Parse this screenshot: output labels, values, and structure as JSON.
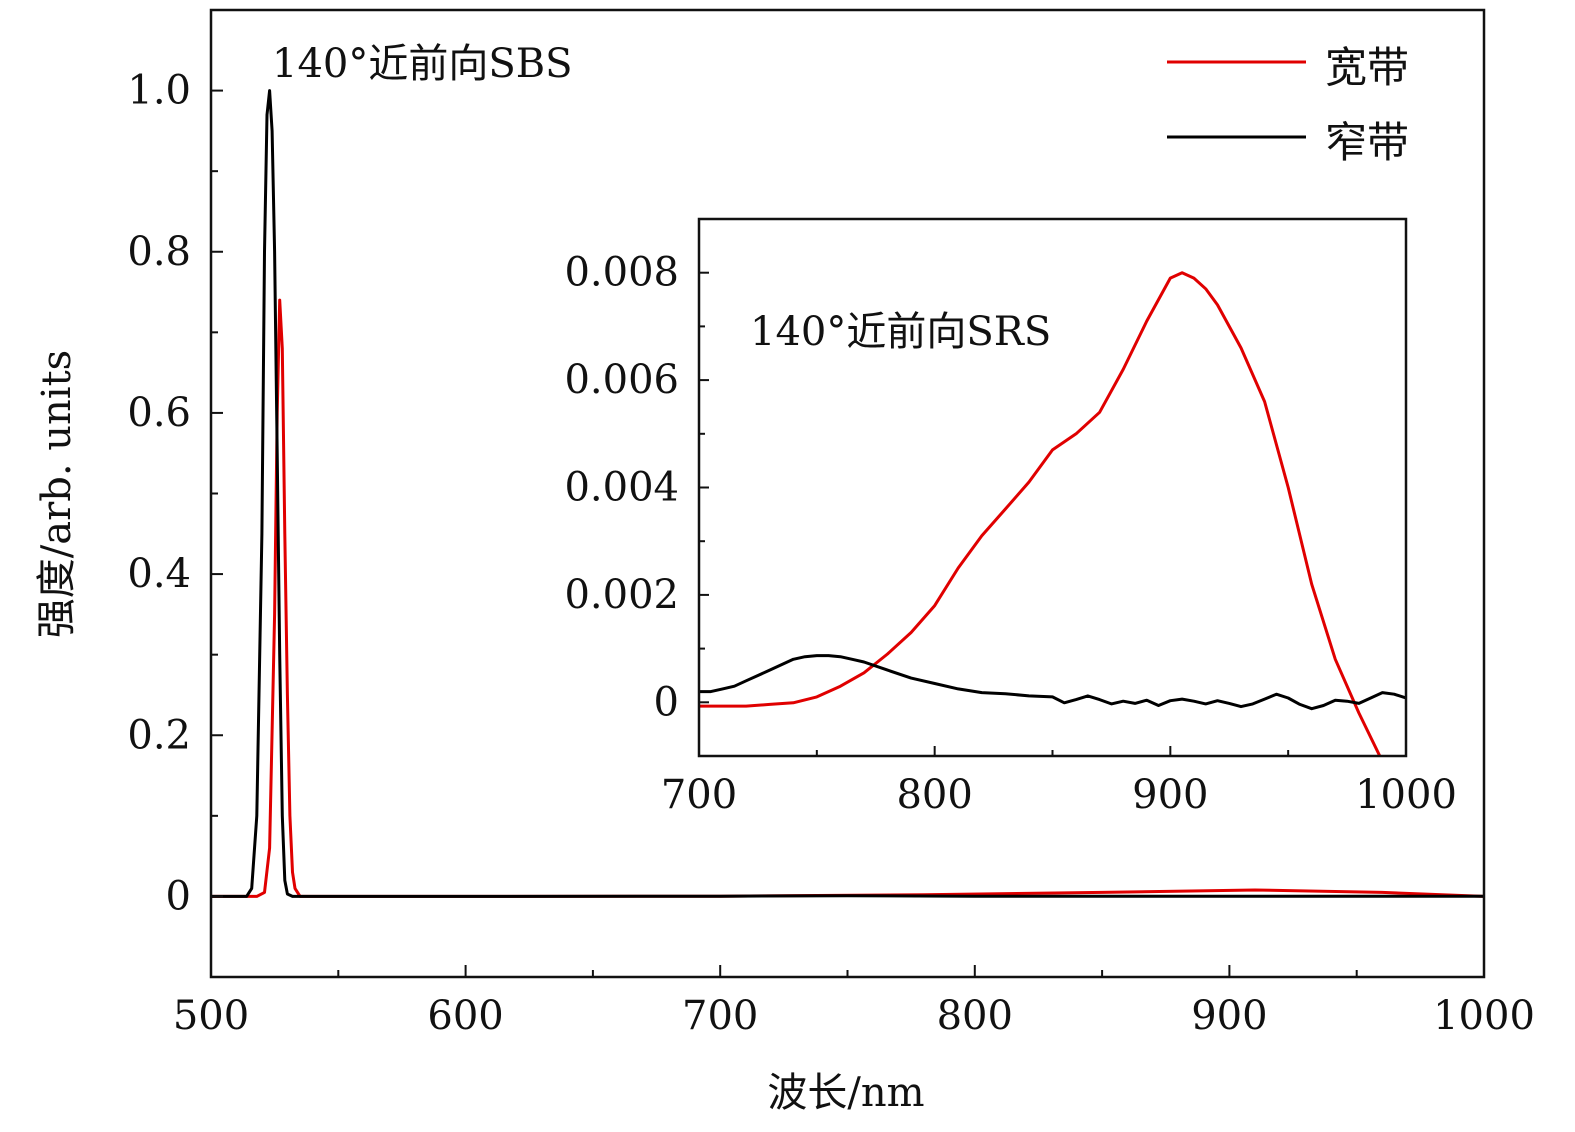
{
  "chart_data": [
    {
      "id": "main",
      "type": "line",
      "title": "",
      "xlabel": "波长/nm",
      "ylabel": "强度/arb. units",
      "xlim": [
        500,
        1000
      ],
      "ylim": [
        -0.1,
        1.1
      ],
      "xticks": [
        500,
        600,
        700,
        800,
        900,
        1000
      ],
      "yticks": [
        0,
        0.2,
        0.4,
        0.6,
        0.8,
        1.0
      ],
      "xtick_labels": [
        "500",
        "600",
        "700",
        "800",
        "900",
        "1000"
      ],
      "ytick_labels": [
        "0",
        "0.2",
        "0.4",
        "0.6",
        "0.8",
        "1.0"
      ],
      "annotation": "140°近前向SBS",
      "legend": {
        "position": "top-right",
        "entries": [
          {
            "label": "宽带",
            "color": "#e00000"
          },
          {
            "label": "窄带",
            "color": "#000000"
          }
        ]
      },
      "series": [
        {
          "name": "宽带",
          "color": "#e00000",
          "x": [
            500,
            518,
            521,
            523,
            525,
            526,
            527,
            528,
            529,
            530,
            531,
            532,
            533,
            535,
            540,
            600,
            700,
            780,
            850,
            910,
            960,
            1000
          ],
          "y": [
            0,
            0,
            0.005,
            0.06,
            0.35,
            0.6,
            0.74,
            0.68,
            0.45,
            0.25,
            0.1,
            0.03,
            0.01,
            0,
            0,
            0,
            0.0003,
            0.002,
            0.005,
            0.008,
            0.005,
            0
          ]
        },
        {
          "name": "窄带",
          "color": "#000000",
          "x": [
            500,
            514,
            516,
            518,
            520,
            521,
            522,
            523,
            524,
            525,
            526,
            527,
            528,
            529,
            530,
            532,
            540,
            600,
            700,
            750,
            800,
            900,
            1000
          ],
          "y": [
            0,
            0,
            0.01,
            0.1,
            0.45,
            0.8,
            0.97,
            1.0,
            0.95,
            0.8,
            0.55,
            0.3,
            0.1,
            0.02,
            0.003,
            0,
            0,
            0,
            0.0003,
            0.0009,
            0.0003,
            0.0001,
            0.0002
          ]
        }
      ]
    },
    {
      "id": "inset",
      "type": "line",
      "title": "",
      "xlabel": "",
      "ylabel": "",
      "xlim": [
        700,
        1000
      ],
      "ylim": [
        -0.001,
        0.009
      ],
      "xticks": [
        700,
        800,
        900,
        1000
      ],
      "yticks": [
        0,
        0.002,
        0.004,
        0.006,
        0.008
      ],
      "xtick_labels": [
        "700",
        "800",
        "900",
        "1000"
      ],
      "ytick_labels": [
        "0",
        "0.002",
        "0.004",
        "0.006",
        "0.008"
      ],
      "annotation": "140°近前向SRS",
      "series": [
        {
          "name": "宽带",
          "color": "#e00000",
          "x": [
            700,
            710,
            720,
            730,
            740,
            750,
            760,
            770,
            780,
            790,
            800,
            810,
            820,
            830,
            840,
            850,
            860,
            870,
            880,
            890,
            900,
            905,
            910,
            915,
            920,
            930,
            940,
            950,
            960,
            970,
            980,
            990
          ],
          "y": [
            -7e-05,
            -7e-05,
            -7e-05,
            -4e-05,
            -1e-05,
            0.0001,
            0.0003,
            0.00055,
            0.0009,
            0.0013,
            0.0018,
            0.0025,
            0.0031,
            0.0036,
            0.0041,
            0.0047,
            0.005,
            0.0054,
            0.0062,
            0.0071,
            0.0079,
            0.008,
            0.0079,
            0.0077,
            0.0074,
            0.0066,
            0.0056,
            0.004,
            0.0022,
            0.0008,
            -0.0002,
            -0.0011
          ]
        },
        {
          "name": "窄带",
          "color": "#000000",
          "x": [
            700,
            705,
            710,
            715,
            720,
            725,
            730,
            740,
            745,
            750,
            755,
            760,
            765,
            770,
            780,
            790,
            800,
            810,
            820,
            830,
            840,
            850,
            855,
            860,
            865,
            870,
            875,
            880,
            885,
            890,
            895,
            900,
            905,
            910,
            915,
            920,
            925,
            930,
            935,
            940,
            945,
            950,
            955,
            960,
            965,
            970,
            975,
            980,
            985,
            990,
            995,
            1000
          ],
          "y": [
            0.0002,
            0.0002,
            0.00025,
            0.0003,
            0.0004,
            0.0005,
            0.0006,
            0.0008,
            0.00085,
            0.00087,
            0.00087,
            0.00085,
            0.0008,
            0.00075,
            0.0006,
            0.00045,
            0.00035,
            0.00025,
            0.00018,
            0.00016,
            0.00012,
            0.0001,
            -1e-05,
            5e-05,
            0.00012,
            5e-05,
            -3e-05,
            2e-05,
            -2e-05,
            4e-05,
            -6e-05,
            3e-05,
            6e-05,
            2e-05,
            -3e-05,
            3e-05,
            -2e-05,
            -8e-05,
            -3e-05,
            6e-05,
            0.00015,
            8e-05,
            -4e-05,
            -0.00012,
            -6e-05,
            4e-05,
            2e-05,
            -2e-05,
            8e-05,
            0.00018,
            0.00015,
            8e-05
          ]
        }
      ]
    }
  ]
}
